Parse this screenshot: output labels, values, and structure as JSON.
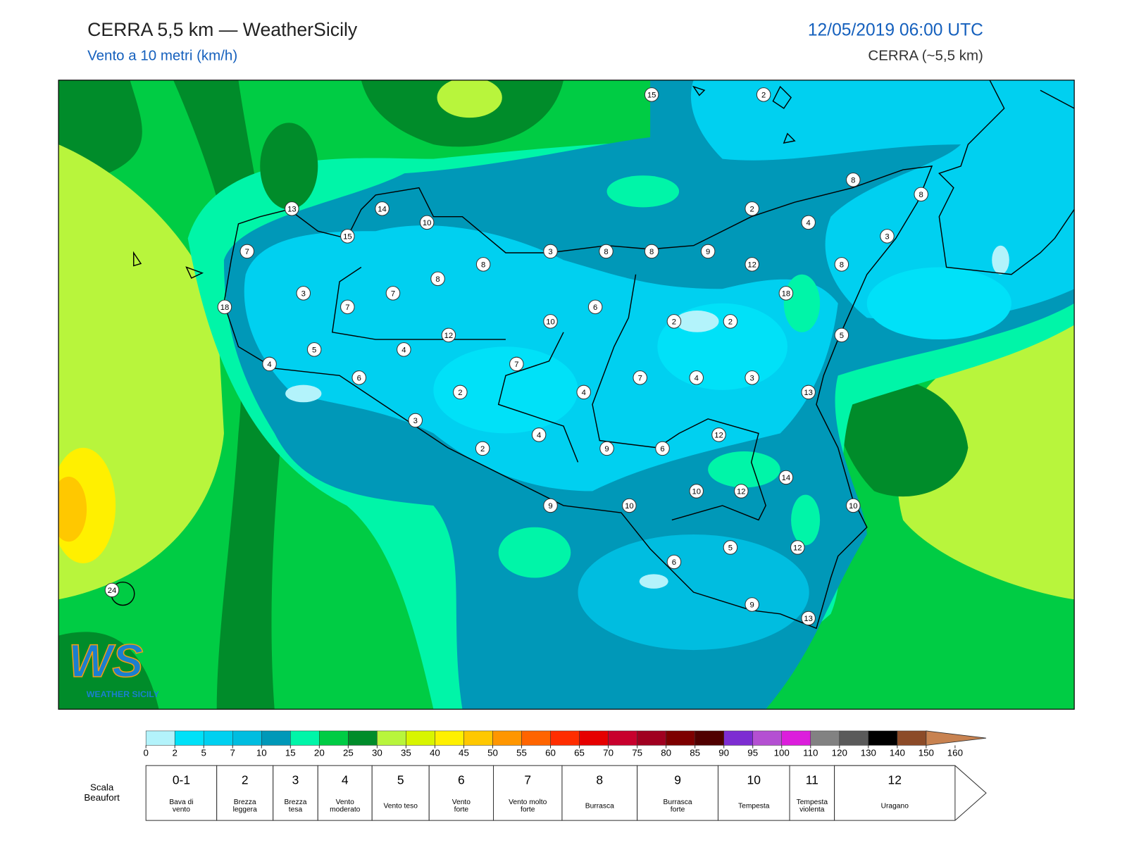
{
  "header": {
    "title": "CERRA 5,5 km — WeatherSicily",
    "subtitle": "Vento a 10 metri (km/h)",
    "datetime": "12/05/2019 06:00 UTC",
    "model": "CERRA (~5,5 km)"
  },
  "map": {
    "stations": [
      15,
      2,
      8,
      8,
      13,
      14,
      10,
      15,
      2,
      4,
      3,
      7,
      3,
      8,
      8,
      9,
      12,
      8,
      8,
      8,
      3,
      7,
      18,
      18,
      7,
      6,
      10,
      2,
      2,
      12,
      5,
      5,
      4,
      4,
      7,
      6,
      7,
      4,
      3,
      13,
      2,
      4,
      3,
      4,
      12,
      2,
      9,
      6,
      14,
      10,
      12,
      9,
      10,
      10,
      24,
      5,
      12,
      6,
      9,
      13
    ]
  },
  "logo": {
    "mark": "WS",
    "name": "WEATHER SICILY"
  },
  "colorbar": {
    "ticks": [
      0,
      2,
      5,
      7,
      10,
      15,
      20,
      25,
      30,
      35,
      40,
      45,
      50,
      55,
      60,
      65,
      70,
      75,
      80,
      85,
      90,
      95,
      100,
      110,
      120,
      130,
      140,
      150,
      160
    ],
    "colors": [
      "#b3f3fb",
      "#00e1f8",
      "#00d0f0",
      "#00bde0",
      "#0098b8",
      "#00f5a8",
      "#00cc44",
      "#008c2a",
      "#b8f53c",
      "#d8f500",
      "#fff000",
      "#ffc800",
      "#ff9600",
      "#ff6400",
      "#ff2d00",
      "#e60000",
      "#c8002d",
      "#a00020",
      "#7d0000",
      "#500000",
      "#7d2dd2",
      "#b450d2",
      "#dc1edc",
      "#828282",
      "#5a5a5a",
      "#000000",
      "#8c4b28",
      "#c88250"
    ]
  },
  "beaufort": {
    "title": [
      "Scala",
      "Beaufort"
    ],
    "levels": [
      {
        "force": "0-1",
        "desc": [
          "Bava di",
          "vento"
        ]
      },
      {
        "force": 2,
        "desc": [
          "Brezza",
          "leggera"
        ]
      },
      {
        "force": 3,
        "desc": [
          "Brezza",
          "tesa"
        ]
      },
      {
        "force": 4,
        "desc": [
          "Vento",
          "moderato"
        ]
      },
      {
        "force": 5,
        "desc": [
          "Vento teso"
        ]
      },
      {
        "force": 6,
        "desc": [
          "Vento",
          "forte"
        ]
      },
      {
        "force": 7,
        "desc": [
          "Vento molto",
          "forte"
        ]
      },
      {
        "force": 8,
        "desc": [
          "Burrasca"
        ]
      },
      {
        "force": 9,
        "desc": [
          "Burrasca",
          "forte"
        ]
      },
      {
        "force": 10,
        "desc": [
          "Tempesta"
        ]
      },
      {
        "force": 11,
        "desc": [
          "Tempesta",
          "violenta"
        ]
      },
      {
        "force": 12,
        "desc": [
          "Uragano"
        ]
      }
    ]
  }
}
